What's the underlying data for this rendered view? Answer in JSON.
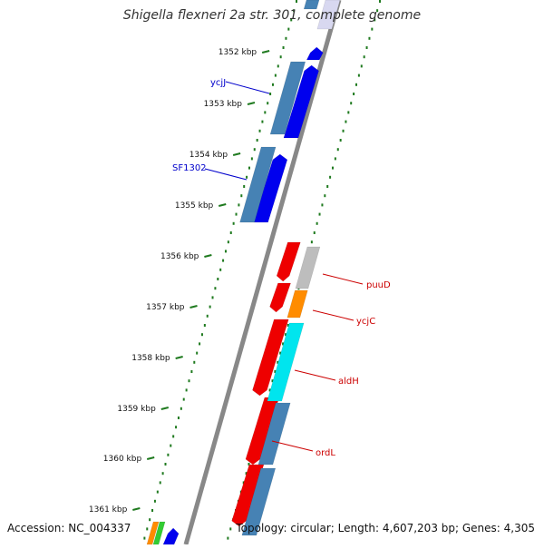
{
  "title": "Shigella flexneri 2a str. 301, complete genome",
  "accession": "Accession: NC_004337",
  "summary": "Topology: circular; Length: 4,607,203 bp; Genes: 4,305",
  "colors": {
    "backbone": "#888888",
    "tick": "#1f7a1f",
    "label_blue": "#0000cc",
    "label_red": "#cc0000",
    "blue": "#0000ee",
    "steel": "#4682b4",
    "red": "#ee0000",
    "orange": "#ff8c00",
    "cyan": "#00e5ee",
    "gray": "#bdbdbd",
    "green": "#33cc33",
    "pale": "#d8d8f0"
  },
  "scale": {
    "ticks": [
      "1352 kbp",
      "1353 kbp",
      "1354 kbp",
      "1355 kbp",
      "1356 kbp",
      "1357 kbp",
      "1358 kbp",
      "1359 kbp",
      "1360 kbp",
      "1361 kbp"
    ]
  },
  "genes": [
    {
      "name": "ycjJ",
      "color": "label_blue"
    },
    {
      "name": "SF1302",
      "color": "label_blue"
    },
    {
      "name": "puuD",
      "color": "label_red"
    },
    {
      "name": "ycjC",
      "color": "label_red"
    },
    {
      "name": "aldH",
      "color": "label_red"
    },
    {
      "name": "ordL",
      "color": "label_red"
    }
  ]
}
